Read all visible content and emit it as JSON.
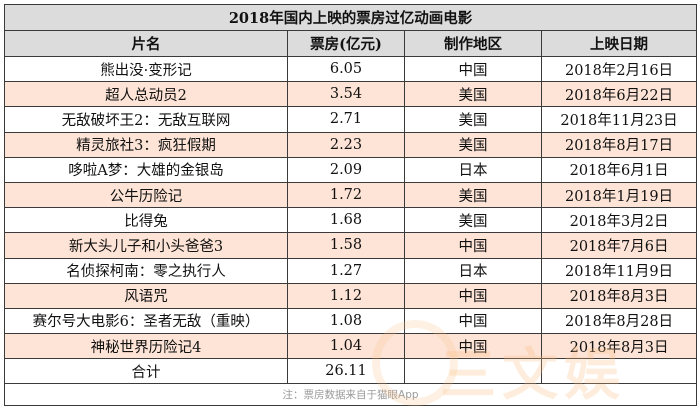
{
  "table": {
    "title": "2018年国内上映的票房过亿动画电影",
    "headers": [
      "片名",
      "票房(亿元)",
      "制作地区",
      "上映日期"
    ],
    "rows": [
      {
        "name": "熊出没·变形记",
        "box": "6.05",
        "region": "中国",
        "date": "2018年2月16日"
      },
      {
        "name": "超人总动员2",
        "box": "3.54",
        "region": "美国",
        "date": "2018年6月22日"
      },
      {
        "name": "无敌破坏王2：无敌互联网",
        "box": "2.71",
        "region": "美国",
        "date": "2018年11月23日"
      },
      {
        "name": "精灵旅社3：疯狂假期",
        "box": "2.23",
        "region": "美国",
        "date": "2018年8月17日"
      },
      {
        "name": "哆啦A梦：大雄的金银岛",
        "box": "2.09",
        "region": "日本",
        "date": "2018年6月1日"
      },
      {
        "name": "公牛历险记",
        "box": "1.72",
        "region": "美国",
        "date": "2018年1月19日"
      },
      {
        "name": "比得兔",
        "box": "1.68",
        "region": "美国",
        "date": "2018年3月2日"
      },
      {
        "name": "新大头儿子和小头爸爸3",
        "box": "1.58",
        "region": "中国",
        "date": "2018年7月6日"
      },
      {
        "name": "名侦探柯南：零之执行人",
        "box": "1.27",
        "region": "日本",
        "date": "2018年11月9日"
      },
      {
        "name": "风语咒",
        "box": "1.12",
        "region": "中国",
        "date": "2018年8月3日"
      },
      {
        "name": "赛尔号大电影6：圣者无敌（重映）",
        "box": "1.08",
        "region": "中国",
        "date": "2018年8月28日"
      },
      {
        "name": "神秘世界历险记4",
        "box": "1.04",
        "region": "中国",
        "date": "2018年8月3日"
      }
    ],
    "total_label": "合计",
    "total_value": "26.11",
    "note": "注：票房数据来自于猫眼App"
  },
  "watermark_text": "三文娱",
  "colors": {
    "header_bg": "#dcdcdc",
    "alt_row_bg": "#fde4d6",
    "border": "#3a3a3a"
  }
}
